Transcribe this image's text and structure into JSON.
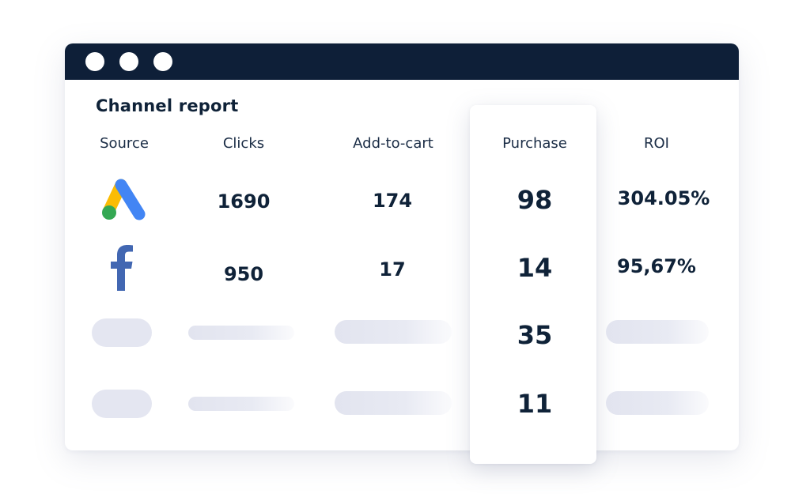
{
  "report": {
    "title": "Channel report",
    "headers": {
      "source": "Source",
      "clicks": "Clicks",
      "add_to_cart": "Add-to-cart",
      "purchase": "Purchase",
      "roi": "ROI"
    },
    "rows": [
      {
        "source_icon": "google-ads-icon",
        "clicks": "1690",
        "add_to_cart": "174",
        "purchase": "98",
        "roi": "304.05%"
      },
      {
        "source_icon": "facebook-icon",
        "clicks": "950",
        "add_to_cart": "17",
        "purchase": "14",
        "roi": "95,67%"
      },
      {
        "source_icon": "placeholder",
        "purchase": "35"
      },
      {
        "source_icon": "placeholder",
        "purchase": "11"
      }
    ]
  },
  "colors": {
    "titlebar": "#0e1f38",
    "text": "#0f2238",
    "google_blue": "#4285f4",
    "google_yellow": "#fbbc04",
    "google_green": "#34a853",
    "facebook_blue": "#4267b2",
    "placeholder": "#e4e6f1"
  }
}
